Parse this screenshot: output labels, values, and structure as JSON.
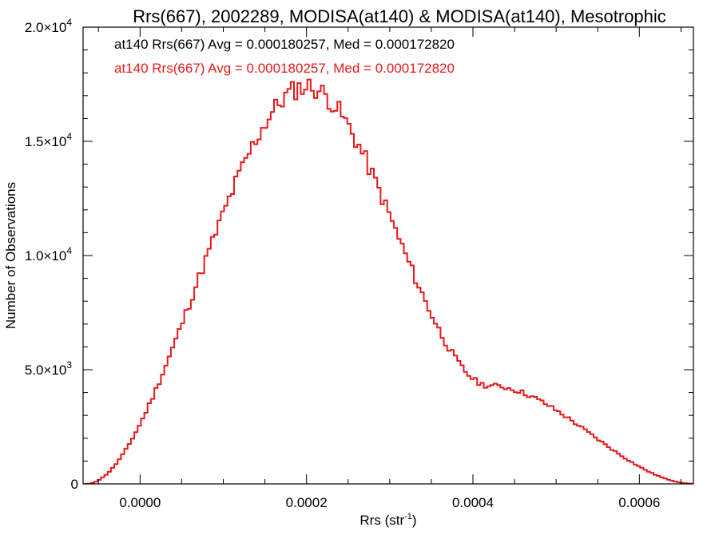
{
  "chart_data": {
    "type": "histogram",
    "title": "Rrs(667), 2002289, MODISA(at140) & MODISA(at140), Mesotrophic",
    "xlabel": {
      "base": "Rrs (str",
      "sup": "-1",
      "suffix": ")"
    },
    "ylabel": "Number of Observations",
    "xlim": [
      -6.85e-05,
      0.000665
    ],
    "ylim": [
      0,
      20000
    ],
    "x_ticks": [
      {
        "value": 0.0,
        "label": "0.0000"
      },
      {
        "value": 0.0002,
        "label": "0.0002"
      },
      {
        "value": 0.0004,
        "label": "0.0004"
      },
      {
        "value": 0.0006,
        "label": "0.0006"
      }
    ],
    "y_ticks": [
      {
        "value": 0,
        "mant": "0",
        "exp": ""
      },
      {
        "value": 5000,
        "mant": "5.0×10",
        "exp": "3"
      },
      {
        "value": 10000,
        "mant": "1.0×10",
        "exp": "4"
      },
      {
        "value": 15000,
        "mant": "1.5×10",
        "exp": "4"
      },
      {
        "value": 20000,
        "mant": "2.0×10",
        "exp": "4"
      }
    ],
    "annotations": [
      {
        "text": "at140 Rrs(667) Avg = 0.000180257, Med = 0.000172820",
        "color": "#000000"
      },
      {
        "text": "at140 Rrs(667) Avg = 0.000180257, Med = 0.000172820",
        "color": "#e8191a"
      }
    ],
    "series": [
      {
        "name": "at140 Rrs(667)",
        "color": "#e8191a",
        "bin_width": 4e-06,
        "x": [
          -6.5e-05,
          0.0002,
          0.00042,
          0.000665
        ],
        "y": [
          0,
          17400,
          4300,
          10
        ]
      },
      {
        "name": "at140 Rrs(667)",
        "color": "#000000",
        "bin_width": 4e-06,
        "x": [
          -6.5e-05,
          0.0002,
          0.00042,
          0.000665
        ],
        "y": [
          0,
          17400,
          4300,
          10
        ]
      }
    ]
  }
}
